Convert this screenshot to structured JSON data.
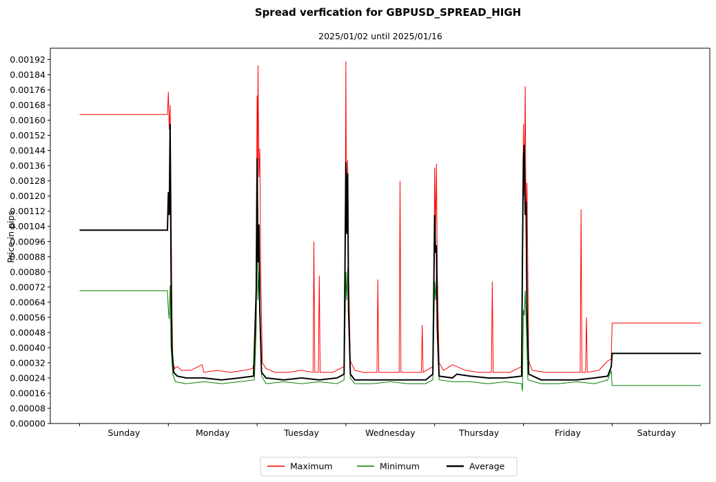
{
  "chart_data": {
    "type": "line",
    "title": "Spread verfication for GBPUSD_SPREAD_HIGH",
    "subtitle": "2025/01/02 until 2025/01/16",
    "xlabel": "",
    "ylabel": "Price in pips",
    "ylim": [
      0,
      0.00198
    ],
    "xlim": [
      -0.33,
      7.1
    ],
    "yticks": [
      "0.00000",
      "0.00008",
      "0.00016",
      "0.00024",
      "0.00032",
      "0.00040",
      "0.00048",
      "0.00056",
      "0.00064",
      "0.00072",
      "0.00080",
      "0.00088",
      "0.00096",
      "0.00104",
      "0.00112",
      "0.00120",
      "0.00128",
      "0.00136",
      "0.00144",
      "0.00152",
      "0.00160",
      "0.00168",
      "0.00176",
      "0.00184",
      "0.00192"
    ],
    "categories": [
      "Sunday",
      "Monday",
      "Tuesday",
      "Wednesday",
      "Thursday",
      "Friday",
      "Saturday"
    ],
    "grid": false,
    "legend": {
      "placement": "bottom-center",
      "columns": 3
    },
    "series": [
      {
        "name": "Maximum",
        "color": "#ff0000",
        "width": 1,
        "points": [
          [
            0,
            0.00163
          ],
          [
            0.99,
            0.00163
          ],
          [
            1.0,
            0.00175
          ],
          [
            1.01,
            0.00155
          ],
          [
            1.02,
            0.00168
          ],
          [
            1.03,
            0.0012
          ],
          [
            1.04,
            0.0006
          ],
          [
            1.05,
            0.00033
          ],
          [
            1.07,
            0.00029
          ],
          [
            1.1,
            0.0003
          ],
          [
            1.15,
            0.00028
          ],
          [
            1.25,
            0.00028
          ],
          [
            1.38,
            0.00031
          ],
          [
            1.4,
            0.00027
          ],
          [
            1.55,
            0.00028
          ],
          [
            1.7,
            0.00027
          ],
          [
            1.85,
            0.00028
          ],
          [
            1.95,
            0.00029
          ],
          [
            1.98,
            0.00035
          ],
          [
            1.99,
            0.0008
          ],
          [
            2.0,
            0.00173
          ],
          [
            2.005,
            0.00125
          ],
          [
            2.01,
            0.00189
          ],
          [
            2.02,
            0.0013
          ],
          [
            2.03,
            0.00145
          ],
          [
            2.04,
            0.0008
          ],
          [
            2.06,
            0.00032
          ],
          [
            2.1,
            0.00029
          ],
          [
            2.2,
            0.00027
          ],
          [
            2.35,
            0.00027
          ],
          [
            2.5,
            0.00028
          ],
          [
            2.63,
            0.00027
          ],
          [
            2.64,
            0.00096
          ],
          [
            2.65,
            0.00027
          ],
          [
            2.69,
            0.00027
          ],
          [
            2.7,
            0.00078
          ],
          [
            2.71,
            0.00027
          ],
          [
            2.85,
            0.00027
          ],
          [
            2.98,
            0.0003
          ],
          [
            2.99,
            0.0006
          ],
          [
            3.0,
            0.00191
          ],
          [
            3.005,
            0.0012
          ],
          [
            3.02,
            0.00139
          ],
          [
            3.03,
            0.0008
          ],
          [
            3.05,
            0.00033
          ],
          [
            3.1,
            0.00028
          ],
          [
            3.2,
            0.00027
          ],
          [
            3.35,
            0.00027
          ],
          [
            3.36,
            0.00076
          ],
          [
            3.37,
            0.00027
          ],
          [
            3.6,
            0.00027
          ],
          [
            3.61,
            0.00128
          ],
          [
            3.62,
            0.00027
          ],
          [
            3.85,
            0.00027
          ],
          [
            3.86,
            0.00052
          ],
          [
            3.87,
            0.00027
          ],
          [
            3.98,
            0.0003
          ],
          [
            3.99,
            0.0006
          ],
          [
            4.0,
            0.00135
          ],
          [
            4.01,
            0.001
          ],
          [
            4.02,
            0.00137
          ],
          [
            4.03,
            0.0008
          ],
          [
            4.05,
            0.00032
          ],
          [
            4.1,
            0.00028
          ],
          [
            4.2,
            0.00031
          ],
          [
            4.35,
            0.00028
          ],
          [
            4.5,
            0.00027
          ],
          [
            4.64,
            0.00027
          ],
          [
            4.65,
            0.00075
          ],
          [
            4.66,
            0.00027
          ],
          [
            4.85,
            0.00027
          ],
          [
            4.98,
            0.0003
          ],
          [
            4.99,
            0.0008
          ],
          [
            5.0,
            0.00158
          ],
          [
            5.01,
            0.0012
          ],
          [
            5.02,
            0.00178
          ],
          [
            5.03,
            0.001
          ],
          [
            5.04,
            0.00127
          ],
          [
            5.06,
            0.00033
          ],
          [
            5.1,
            0.00028
          ],
          [
            5.25,
            0.00027
          ],
          [
            5.45,
            0.00027
          ],
          [
            5.64,
            0.00027
          ],
          [
            5.65,
            0.00113
          ],
          [
            5.66,
            0.00027
          ],
          [
            5.7,
            0.00027
          ],
          [
            5.71,
            0.00056
          ],
          [
            5.72,
            0.00027
          ],
          [
            5.85,
            0.00028
          ],
          [
            5.95,
            0.00033
          ],
          [
            5.99,
            0.00034
          ],
          [
            6.0,
            0.00053
          ],
          [
            7.0,
            0.00053
          ]
        ]
      },
      {
        "name": "Minimum",
        "color": "#008000",
        "width": 1,
        "points": [
          [
            0,
            0.0007
          ],
          [
            0.99,
            0.0007
          ],
          [
            1.0,
            0.0006
          ],
          [
            1.01,
            0.00055
          ],
          [
            1.02,
            0.00073
          ],
          [
            1.03,
            0.0004
          ],
          [
            1.05,
            0.00026
          ],
          [
            1.08,
            0.00022
          ],
          [
            1.2,
            0.00021
          ],
          [
            1.4,
            0.00022
          ],
          [
            1.6,
            0.00021
          ],
          [
            1.8,
            0.00022
          ],
          [
            1.97,
            0.00023
          ],
          [
            1.99,
            0.0005
          ],
          [
            2.0,
            0.001
          ],
          [
            2.01,
            0.00065
          ],
          [
            2.02,
            0.0008
          ],
          [
            2.03,
            0.0006
          ],
          [
            2.05,
            0.00025
          ],
          [
            2.1,
            0.00021
          ],
          [
            2.3,
            0.00022
          ],
          [
            2.5,
            0.00021
          ],
          [
            2.7,
            0.00022
          ],
          [
            2.9,
            0.00021
          ],
          [
            2.98,
            0.00023
          ],
          [
            3.0,
            0.0008
          ],
          [
            3.01,
            0.00065
          ],
          [
            3.02,
            0.00082
          ],
          [
            3.03,
            0.0006
          ],
          [
            3.05,
            0.00024
          ],
          [
            3.1,
            0.00021
          ],
          [
            3.3,
            0.00021
          ],
          [
            3.5,
            0.00022
          ],
          [
            3.7,
            0.00021
          ],
          [
            3.9,
            0.00021
          ],
          [
            3.98,
            0.00023
          ],
          [
            4.0,
            0.00075
          ],
          [
            4.01,
            0.00065
          ],
          [
            4.02,
            0.00078
          ],
          [
            4.03,
            0.0005
          ],
          [
            4.05,
            0.00023
          ],
          [
            4.2,
            0.00022
          ],
          [
            4.4,
            0.00022
          ],
          [
            4.6,
            0.00021
          ],
          [
            4.8,
            0.00022
          ],
          [
            4.98,
            0.00021
          ],
          [
            4.99,
            0.00017
          ],
          [
            5.0,
            0.0006
          ],
          [
            5.01,
            0.00057
          ],
          [
            5.02,
            0.0007
          ],
          [
            5.03,
            0.00055
          ],
          [
            5.05,
            0.00023
          ],
          [
            5.2,
            0.00021
          ],
          [
            5.4,
            0.00021
          ],
          [
            5.6,
            0.00022
          ],
          [
            5.8,
            0.00021
          ],
          [
            5.95,
            0.00023
          ],
          [
            5.99,
            0.00028
          ],
          [
            6.0,
            0.0002
          ],
          [
            7.0,
            0.0002
          ]
        ]
      },
      {
        "name": "Average",
        "color": "#000000",
        "width": 2,
        "points": [
          [
            0,
            0.00102
          ],
          [
            0.99,
            0.00102
          ],
          [
            1.0,
            0.00122
          ],
          [
            1.01,
            0.0011
          ],
          [
            1.02,
            0.00158
          ],
          [
            1.03,
            0.0008
          ],
          [
            1.04,
            0.0004
          ],
          [
            1.06,
            0.00027
          ],
          [
            1.1,
            0.00025
          ],
          [
            1.2,
            0.00024
          ],
          [
            1.4,
            0.00024
          ],
          [
            1.6,
            0.00023
          ],
          [
            1.8,
            0.00024
          ],
          [
            1.96,
            0.00025
          ],
          [
            1.99,
            0.0007
          ],
          [
            2.0,
            0.0014
          ],
          [
            2.01,
            0.00085
          ],
          [
            2.02,
            0.00105
          ],
          [
            2.03,
            0.0006
          ],
          [
            2.05,
            0.00027
          ],
          [
            2.1,
            0.00024
          ],
          [
            2.3,
            0.00023
          ],
          [
            2.5,
            0.00024
          ],
          [
            2.7,
            0.00023
          ],
          [
            2.9,
            0.00024
          ],
          [
            2.98,
            0.00026
          ],
          [
            3.0,
            0.00138
          ],
          [
            3.01,
            0.001
          ],
          [
            3.02,
            0.00132
          ],
          [
            3.03,
            0.0006
          ],
          [
            3.05,
            0.00026
          ],
          [
            3.1,
            0.00023
          ],
          [
            3.3,
            0.00023
          ],
          [
            3.5,
            0.00023
          ],
          [
            3.7,
            0.00023
          ],
          [
            3.9,
            0.00023
          ],
          [
            3.98,
            0.00026
          ],
          [
            4.0,
            0.0011
          ],
          [
            4.01,
            0.0009
          ],
          [
            4.02,
            0.00094
          ],
          [
            4.03,
            0.0005
          ],
          [
            4.05,
            0.00025
          ],
          [
            4.2,
            0.00024
          ],
          [
            4.25,
            0.00026
          ],
          [
            4.4,
            0.00025
          ],
          [
            4.6,
            0.00024
          ],
          [
            4.8,
            0.00024
          ],
          [
            4.98,
            0.00025
          ],
          [
            4.99,
            0.0009
          ],
          [
            5.0,
            0.0014
          ],
          [
            5.01,
            0.00147
          ],
          [
            5.02,
            0.0011
          ],
          [
            5.03,
            0.00117
          ],
          [
            5.04,
            0.0006
          ],
          [
            5.06,
            0.00026
          ],
          [
            5.2,
            0.00023
          ],
          [
            5.4,
            0.00023
          ],
          [
            5.6,
            0.00023
          ],
          [
            5.8,
            0.00024
          ],
          [
            5.95,
            0.00025
          ],
          [
            5.99,
            0.0003
          ],
          [
            6.0,
            0.00037
          ],
          [
            7.0,
            0.00037
          ]
        ]
      }
    ]
  }
}
